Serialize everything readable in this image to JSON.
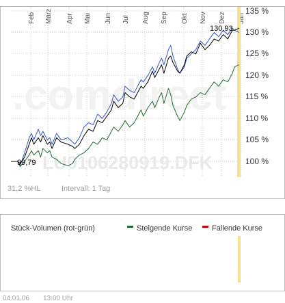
{
  "chart_data": [
    {
      "type": "line",
      "title": "",
      "months": [
        "Feb",
        "März",
        "Apr",
        "Mai",
        "Jun",
        "Jul",
        "Aug",
        "Sep",
        "Okt",
        "Nov",
        "Dez",
        "Jan"
      ],
      "y_ticks": [
        "135 %",
        "130 %",
        "125 %",
        "120 %",
        "115 %",
        "110 %",
        "105 %",
        "100 %"
      ],
      "ylim": [
        95.8,
        136.2
      ],
      "grid": true,
      "start_label": "99,79",
      "end_label": "130,93",
      "series": [
        {
          "color": "#000000",
          "points": [
            [
              0.0,
              100.0
            ],
            [
              3.0,
              100.0
            ],
            [
              4.0,
              99.5
            ],
            [
              6.0,
              101.0
            ],
            [
              8.0,
              104.0
            ],
            [
              9.0,
              105.5
            ],
            [
              10.0,
              104.0
            ],
            [
              12.0,
              105.5
            ],
            [
              13.0,
              104.5
            ],
            [
              14.0,
              106.0
            ],
            [
              16.0,
              104.0
            ],
            [
              17.0,
              104.5
            ],
            [
              18.0,
              103.0
            ],
            [
              20.0,
              105.5
            ],
            [
              22.0,
              104.5
            ],
            [
              25.0,
              104.0
            ],
            [
              27.0,
              103.5
            ],
            [
              28.0,
              103.0
            ],
            [
              30.0,
              104.0
            ],
            [
              32.0,
              106.0
            ],
            [
              34.0,
              107.5
            ],
            [
              36.0,
              107.0
            ],
            [
              38.0,
              109.5
            ],
            [
              40.0,
              109.0
            ],
            [
              42.0,
              110.5
            ],
            [
              44.0,
              112.0
            ],
            [
              45.0,
              114.0
            ],
            [
              47.0,
              112.5
            ],
            [
              49.0,
              113.5
            ],
            [
              50.0,
              116.0
            ],
            [
              52.0,
              115.0
            ],
            [
              54.0,
              114.5
            ],
            [
              55.0,
              115.5
            ],
            [
              57.0,
              117.5
            ],
            [
              58.0,
              117.0
            ],
            [
              60.0,
              118.5
            ],
            [
              62.0,
              121.0
            ],
            [
              63.0,
              119.5
            ],
            [
              65.0,
              121.5
            ],
            [
              66.0,
              122.5
            ],
            [
              67.0,
              120.5
            ],
            [
              69.0,
              124.0
            ],
            [
              70.0,
              124.5
            ],
            [
              71.0,
              123.0
            ],
            [
              73.0,
              121.0
            ],
            [
              74.0,
              120.5
            ],
            [
              76.0,
              122.5
            ],
            [
              77.0,
              124.5
            ],
            [
              79.0,
              125.5
            ],
            [
              81.0,
              125.0
            ],
            [
              83.0,
              127.5
            ],
            [
              85.0,
              126.0
            ],
            [
              87.0,
              127.0
            ],
            [
              89.0,
              128.5
            ],
            [
              91.0,
              128.0
            ],
            [
              93.0,
              129.5
            ],
            [
              95.0,
              128.5
            ],
            [
              97.0,
              130.5
            ],
            [
              98.0,
              130.5
            ],
            [
              100.0,
              131.0
            ]
          ]
        },
        {
          "color": "#3355cc",
          "points": [
            [
              0.0,
              100.0
            ],
            [
              3.0,
              100.0
            ],
            [
              4.0,
              99.0
            ],
            [
              6.0,
              102.0
            ],
            [
              8.0,
              105.5
            ],
            [
              9.0,
              106.5
            ],
            [
              10.0,
              105.0
            ],
            [
              12.0,
              107.5
            ],
            [
              13.0,
              106.0
            ],
            [
              14.0,
              107.0
            ],
            [
              16.0,
              105.0
            ],
            [
              17.0,
              105.5
            ],
            [
              18.0,
              104.0
            ],
            [
              20.0,
              106.5
            ],
            [
              22.0,
              105.0
            ],
            [
              25.0,
              105.5
            ],
            [
              27.0,
              104.5
            ],
            [
              28.0,
              104.0
            ],
            [
              30.0,
              105.5
            ],
            [
              32.0,
              108.0
            ],
            [
              34.0,
              109.0
            ],
            [
              36.0,
              108.5
            ],
            [
              38.0,
              111.0
            ],
            [
              40.0,
              110.0
            ],
            [
              42.0,
              111.5
            ],
            [
              44.0,
              113.5
            ],
            [
              45.0,
              115.5
            ],
            [
              47.0,
              114.0
            ],
            [
              49.0,
              115.0
            ],
            [
              50.0,
              117.5
            ],
            [
              52.0,
              116.5
            ],
            [
              54.0,
              116.0
            ],
            [
              55.0,
              117.0
            ],
            [
              57.0,
              119.0
            ],
            [
              58.0,
              118.5
            ],
            [
              60.0,
              120.0
            ],
            [
              62.0,
              122.0
            ],
            [
              63.0,
              120.5
            ],
            [
              65.0,
              123.0
            ],
            [
              66.0,
              124.0
            ],
            [
              67.0,
              122.5
            ],
            [
              69.0,
              126.0
            ],
            [
              70.0,
              127.0
            ],
            [
              71.0,
              124.5
            ],
            [
              73.0,
              121.5
            ],
            [
              74.0,
              120.5
            ],
            [
              76.0,
              122.0
            ],
            [
              77.0,
              124.0
            ],
            [
              79.0,
              125.0
            ],
            [
              81.0,
              126.0
            ],
            [
              83.0,
              128.0
            ],
            [
              85.0,
              127.0
            ],
            [
              87.0,
              128.5
            ],
            [
              89.0,
              130.0
            ],
            [
              91.0,
              129.0
            ],
            [
              93.0,
              130.5
            ],
            [
              95.0,
              129.5
            ],
            [
              97.0,
              131.0
            ],
            [
              98.0,
              130.5
            ],
            [
              100.0,
              130.0
            ]
          ]
        },
        {
          "color": "#1e6b30",
          "points": [
            [
              0.0,
              100.0
            ],
            [
              3.0,
              100.0
            ],
            [
              4.0,
              98.8
            ],
            [
              6.0,
              100.0
            ],
            [
              8.0,
              101.5
            ],
            [
              9.0,
              102.5
            ],
            [
              10.0,
              101.5
            ],
            [
              12.0,
              102.5
            ],
            [
              13.0,
              101.0
            ],
            [
              14.0,
              103.0
            ],
            [
              16.0,
              102.0
            ],
            [
              17.0,
              102.5
            ],
            [
              18.0,
              101.0
            ],
            [
              20.0,
              100.5
            ],
            [
              22.0,
              99.5
            ],
            [
              25.0,
              99.0
            ],
            [
              27.0,
              99.5
            ],
            [
              28.0,
              100.5
            ],
            [
              30.0,
              101.5
            ],
            [
              32.0,
              102.0
            ],
            [
              34.0,
              103.0
            ],
            [
              36.0,
              104.5
            ],
            [
              38.0,
              104.0
            ],
            [
              40.0,
              105.5
            ],
            [
              42.0,
              105.0
            ],
            [
              44.0,
              107.0
            ],
            [
              45.0,
              108.0
            ],
            [
              47.0,
              107.0
            ],
            [
              49.0,
              108.5
            ],
            [
              50.0,
              109.5
            ],
            [
              52.0,
              108.0
            ],
            [
              54.0,
              109.0
            ],
            [
              55.0,
              110.0
            ],
            [
              57.0,
              112.0
            ],
            [
              58.0,
              110.5
            ],
            [
              60.0,
              112.5
            ],
            [
              62.0,
              114.0
            ],
            [
              63.0,
              112.5
            ],
            [
              65.0,
              115.0
            ],
            [
              66.0,
              116.0
            ],
            [
              67.0,
              113.5
            ],
            [
              69.0,
              117.0
            ],
            [
              70.0,
              115.5
            ],
            [
              71.0,
              113.0
            ],
            [
              73.0,
              110.5
            ],
            [
              74.0,
              109.5
            ],
            [
              76.0,
              111.5
            ],
            [
              77.0,
              113.0
            ],
            [
              79.0,
              114.5
            ],
            [
              81.0,
              115.0
            ],
            [
              83.0,
              116.0
            ],
            [
              85.0,
              115.5
            ],
            [
              87.0,
              117.0
            ],
            [
              89.0,
              118.5
            ],
            [
              91.0,
              117.5
            ],
            [
              93.0,
              119.0
            ],
            [
              95.0,
              118.5
            ],
            [
              97.0,
              120.5
            ],
            [
              98.0,
              122.0
            ],
            [
              100.0,
              122.5
            ]
          ]
        }
      ]
    },
    {
      "type": "bar",
      "title": "Stück-Volumen (rot-grün)",
      "series": [
        {
          "name": "Steigende Kurse",
          "color": "#1e6b30",
          "values": []
        },
        {
          "name": "Fallende Kurse",
          "color": "#cc0000",
          "values": []
        }
      ]
    }
  ],
  "watermark": ".comdirect",
  "isin_watermark": "LU0106280919.DFK",
  "footer": {
    "range": "31,2 %HL",
    "interval": "Intervall: 1 Tag",
    "date": "04.01.06",
    "time": "13:00 Uhr"
  },
  "colors": {
    "grid": "#c8c8c8",
    "frame": "#bbbbbb",
    "highlight": "#f5e08a"
  }
}
